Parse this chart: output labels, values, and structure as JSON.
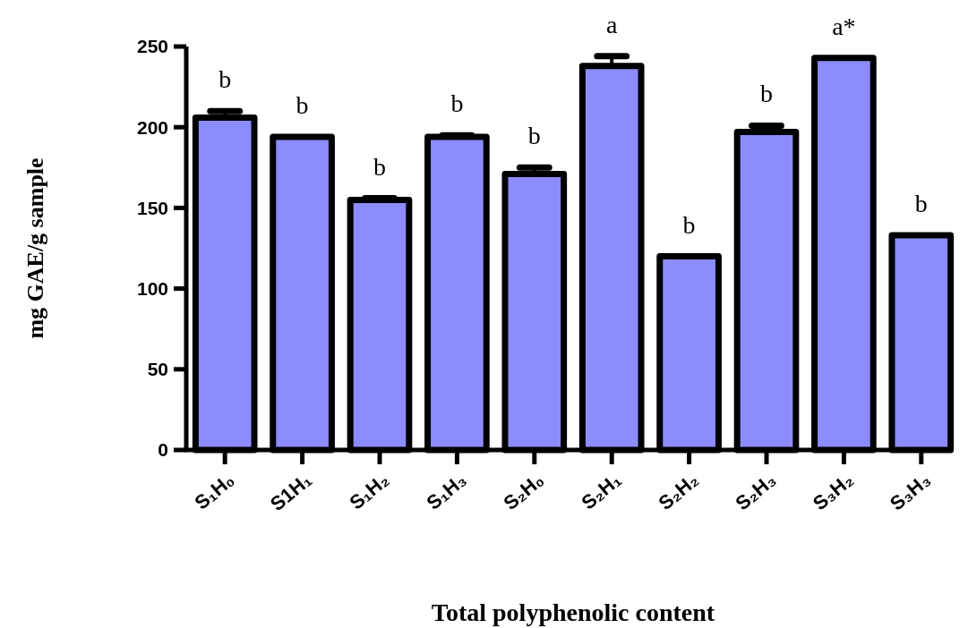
{
  "chart_data": {
    "type": "bar",
    "xlabel": "Total polyphenolic content",
    "ylabel": "mg GAE/g sample",
    "categories": [
      "S₁H₀",
      "S1H₁",
      "S₁H₂",
      "S₁H₃",
      "S₂H₀",
      "S₂H₁",
      "S₂H₂",
      "S₂H₃",
      "S₃H₂",
      "S₃H₃"
    ],
    "values": [
      206,
      194,
      155,
      194,
      171,
      238,
      120,
      197,
      243,
      133
    ],
    "errors": [
      4,
      null,
      1,
      1,
      4,
      6,
      null,
      4,
      null,
      null
    ],
    "color": "#8c8cff",
    "ylim": [
      0,
      250
    ],
    "yticks": [
      0,
      50,
      100,
      150,
      200,
      250
    ],
    "annotations": [
      {
        "text": "b",
        "x": "S₁H₀",
        "y": 206
      },
      {
        "text": "b",
        "x": "S1H₁",
        "y": 194
      },
      {
        "text": "b",
        "x": "S₁H₂",
        "y": 155
      },
      {
        "text": "b",
        "x": "S₁H₃",
        "y": 194
      },
      {
        "text": "b",
        "x": "S₂H₀",
        "y": 171
      },
      {
        "text": "a",
        "x": "S₂H₁",
        "y": 238
      },
      {
        "text": "b",
        "x": "S₂H₂",
        "y": 120
      },
      {
        "text": "b",
        "x": "S₂H₃",
        "y": 197
      },
      {
        "text": "a*",
        "x": "S₃H₂",
        "y": 243
      },
      {
        "text": "b",
        "x": "S₃H₃",
        "y": 133
      }
    ],
    "grid": false
  }
}
